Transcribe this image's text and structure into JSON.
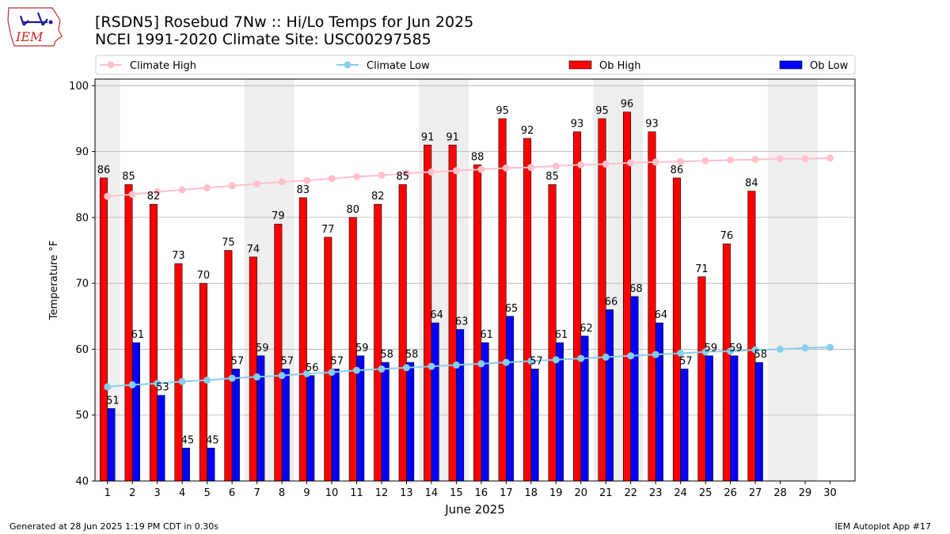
{
  "logo": {
    "text": "IEM"
  },
  "title": {
    "line1": "[RSDN5] Rosebud 7Nw :: Hi/Lo Temps for Jun 2025",
    "line2": "NCEI 1991-2020 Climate Site: USC00297585"
  },
  "footer": {
    "left": "Generated at 28 Jun 2025 1:19 PM CDT in 0.30s",
    "right": "IEM Autoplot App #17"
  },
  "colors": {
    "ob_high": "#ff0000",
    "ob_low": "#0000ff",
    "climate_high": "#ffc0cb",
    "climate_low": "#87ceeb",
    "weekend_shade": "#eeeeee",
    "grid": "#b0b0b0"
  },
  "chart_data": {
    "type": "bar",
    "xlabel": "June 2025",
    "ylabel": "Temperature °F",
    "ylim": [
      40,
      101
    ],
    "yticks": [
      40,
      50,
      60,
      70,
      80,
      90,
      100
    ],
    "grid": true,
    "legend_placement": "top",
    "categories": [
      "1",
      "2",
      "3",
      "4",
      "5",
      "6",
      "7",
      "8",
      "9",
      "10",
      "11",
      "12",
      "13",
      "14",
      "15",
      "16",
      "17",
      "18",
      "19",
      "20",
      "21",
      "22",
      "23",
      "24",
      "25",
      "26",
      "27",
      "28",
      "29",
      "30"
    ],
    "shaded_days": [
      1,
      7,
      8,
      14,
      15,
      21,
      22,
      28,
      29
    ],
    "series": [
      {
        "name": "Climate High",
        "kind": "line",
        "values": [
          83.2,
          83.5,
          83.9,
          84.2,
          84.5,
          84.8,
          85.1,
          85.4,
          85.6,
          85.9,
          86.2,
          86.4,
          86.7,
          86.9,
          87.1,
          87.3,
          87.5,
          87.6,
          87.8,
          88.0,
          88.1,
          88.3,
          88.4,
          88.5,
          88.6,
          88.7,
          88.8,
          88.9,
          88.9,
          89.0
        ]
      },
      {
        "name": "Climate Low",
        "kind": "line",
        "values": [
          54.3,
          54.6,
          54.8,
          55.1,
          55.3,
          55.6,
          55.8,
          56.0,
          56.3,
          56.5,
          56.8,
          57.0,
          57.2,
          57.4,
          57.6,
          57.8,
          58.0,
          58.2,
          58.4,
          58.6,
          58.8,
          59.0,
          59.2,
          59.4,
          59.6,
          59.7,
          59.9,
          60.0,
          60.2,
          60.3
        ]
      },
      {
        "name": "Ob High",
        "kind": "bar",
        "values": [
          86,
          85,
          82,
          73,
          70,
          75,
          74,
          79,
          83,
          77,
          80,
          82,
          85,
          91,
          91,
          88,
          95,
          92,
          85,
          93,
          95,
          96,
          93,
          86,
          71,
          76,
          84,
          null,
          null,
          null
        ]
      },
      {
        "name": "Ob Low",
        "kind": "bar",
        "values": [
          51,
          61,
          53,
          45,
          45,
          57,
          59,
          57,
          56,
          57,
          59,
          58,
          58,
          64,
          63,
          61,
          65,
          57,
          61,
          62,
          66,
          68,
          64,
          57,
          59,
          59,
          58,
          null,
          null,
          null
        ]
      }
    ]
  }
}
